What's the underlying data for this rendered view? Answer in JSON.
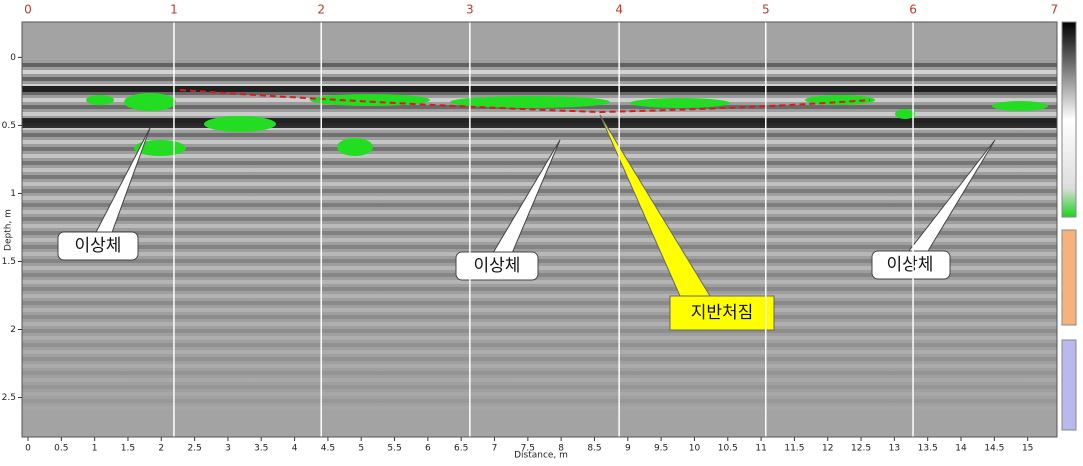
{
  "chart_data": {
    "type": "radargram",
    "x_label": "Distance, m",
    "y_label": "Depth, m",
    "xlim": [
      -0.09,
      15.44
    ],
    "ylim": [
      -0.26,
      2.79
    ],
    "xticks": [
      0,
      0.5,
      1,
      1.5,
      2,
      2.5,
      3,
      3.5,
      4,
      4.5,
      5,
      5.5,
      6,
      6.5,
      7,
      7.5,
      8,
      8.5,
      9,
      9.5,
      10,
      10.5,
      11,
      11.5,
      12,
      12.5,
      13,
      13.5,
      14,
      14.5,
      15
    ],
    "yticks": [
      0,
      0.5,
      1,
      1.5,
      2,
      2.5
    ],
    "markers": [
      {
        "value": 0,
        "label": "0"
      },
      {
        "value": 2.19,
        "label": "1"
      },
      {
        "value": 4.4,
        "label": "2"
      },
      {
        "value": 6.63,
        "label": "3"
      },
      {
        "value": 8.87,
        "label": "4"
      },
      {
        "value": 11.07,
        "label": "5"
      },
      {
        "value": 13.28,
        "label": "6"
      },
      {
        "value": 15.4,
        "label": "7"
      }
    ],
    "annotations": [
      "이상체",
      "이상체",
      "이상체",
      "지반처짐"
    ]
  }
}
